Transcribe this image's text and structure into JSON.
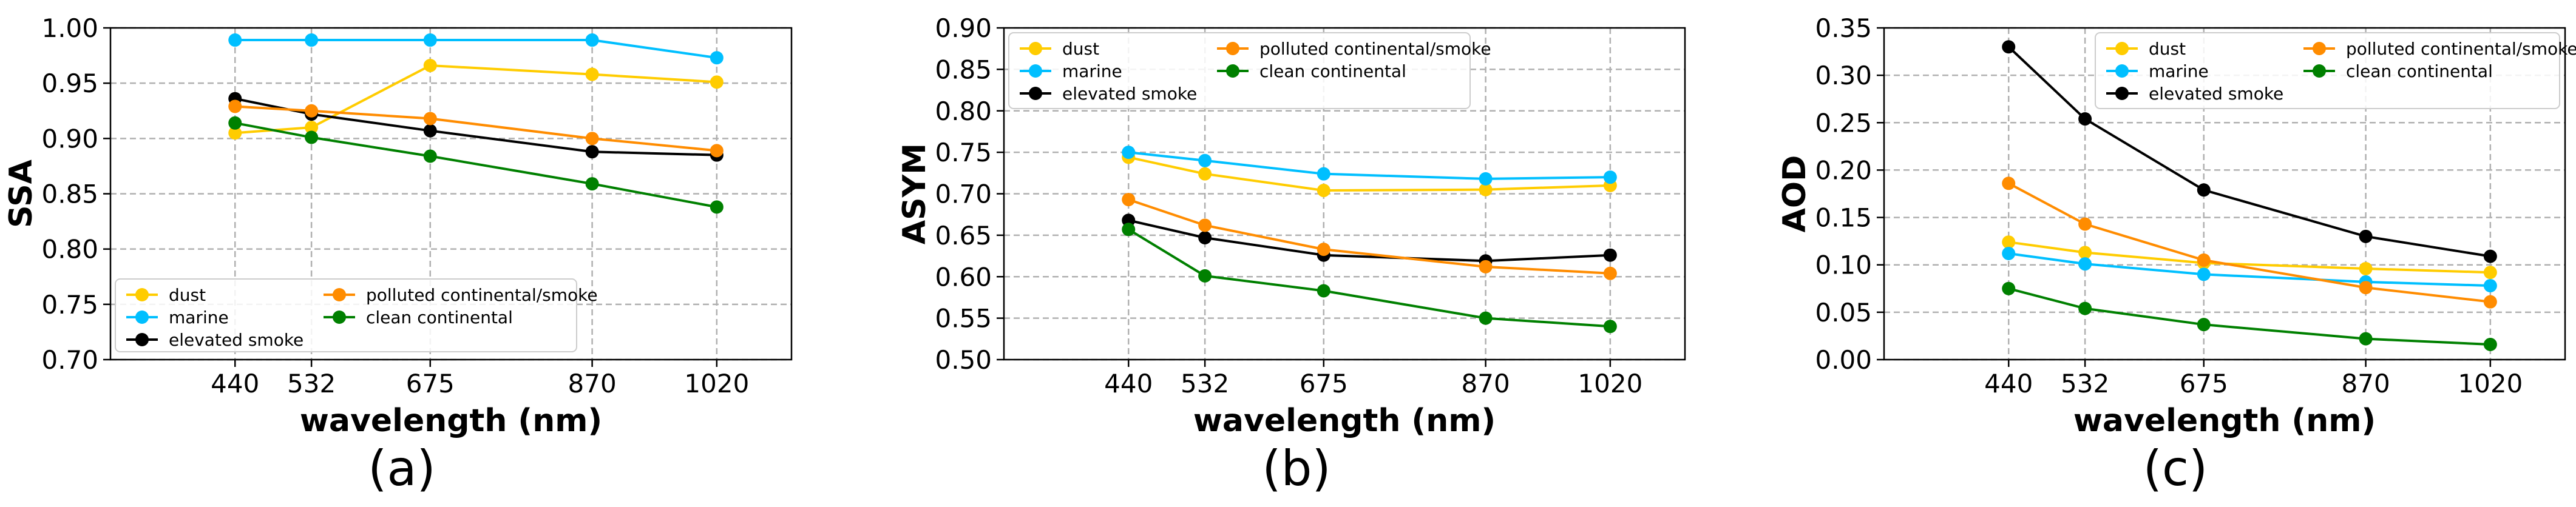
{
  "series_styles": {
    "dust": "#FFCC00",
    "marine": "#00BFFF",
    "elevated smoke": "#000000",
    "polluted continental/smoke": "#FF8C00",
    "clean continental": "#008000"
  },
  "chart_data": [
    {
      "type": "line",
      "panel_label": "(a)",
      "xlabel": "wavelength (nm)",
      "ylabel": "SSA",
      "x": [
        440,
        532,
        675,
        870,
        1020
      ],
      "xlim": [
        290,
        1110
      ],
      "ylim": [
        0.7,
        1.0
      ],
      "yticks": [
        "0.70",
        "0.75",
        "0.80",
        "0.85",
        "0.90",
        "0.95",
        "1.00"
      ],
      "legend_position": "bottom-left",
      "grid": true,
      "series": [
        {
          "name": "dust",
          "values": [
            0.905,
            0.91,
            0.966,
            0.958,
            0.951
          ]
        },
        {
          "name": "marine",
          "values": [
            0.989,
            0.989,
            0.989,
            0.989,
            0.973
          ]
        },
        {
          "name": "elevated smoke",
          "values": [
            0.936,
            0.922,
            0.907,
            0.888,
            0.885
          ]
        },
        {
          "name": "polluted continental/smoke",
          "values": [
            0.929,
            0.925,
            0.918,
            0.9,
            0.889
          ]
        },
        {
          "name": "clean continental",
          "values": [
            0.914,
            0.901,
            0.884,
            0.859,
            0.838
          ]
        }
      ]
    },
    {
      "type": "line",
      "panel_label": "(b)",
      "xlabel": "wavelength (nm)",
      "ylabel": "ASYM",
      "x": [
        440,
        532,
        675,
        870,
        1020
      ],
      "xlim": [
        290,
        1110
      ],
      "ylim": [
        0.5,
        0.9
      ],
      "yticks": [
        "0.50",
        "0.55",
        "0.60",
        "0.65",
        "0.70",
        "0.75",
        "0.80",
        "0.85",
        "0.90"
      ],
      "legend_position": "top-left",
      "grid": true,
      "series": [
        {
          "name": "dust",
          "values": [
            0.744,
            0.724,
            0.704,
            0.705,
            0.71
          ]
        },
        {
          "name": "marine",
          "values": [
            0.75,
            0.74,
            0.724,
            0.718,
            0.72
          ]
        },
        {
          "name": "elevated smoke",
          "values": [
            0.668,
            0.647,
            0.626,
            0.619,
            0.626
          ]
        },
        {
          "name": "polluted continental/smoke",
          "values": [
            0.693,
            0.662,
            0.633,
            0.612,
            0.604
          ]
        },
        {
          "name": "clean continental",
          "values": [
            0.657,
            0.601,
            0.583,
            0.55,
            0.54
          ]
        }
      ]
    },
    {
      "type": "line",
      "panel_label": "(c)",
      "xlabel": "wavelength (nm)",
      "ylabel": "AOD",
      "x": [
        440,
        532,
        675,
        870,
        1020
      ],
      "xlim": [
        290,
        1110
      ],
      "ylim": [
        0.0,
        0.35
      ],
      "yticks": [
        "0.00",
        "0.05",
        "0.10",
        "0.15",
        "0.20",
        "0.25",
        "0.30",
        "0.35"
      ],
      "legend_position": "top-right",
      "grid": true,
      "series": [
        {
          "name": "dust",
          "values": [
            0.124,
            0.113,
            0.102,
            0.096,
            0.092
          ]
        },
        {
          "name": "marine",
          "values": [
            0.112,
            0.101,
            0.09,
            0.082,
            0.078
          ]
        },
        {
          "name": "elevated smoke",
          "values": [
            0.33,
            0.254,
            0.179,
            0.13,
            0.109
          ]
        },
        {
          "name": "polluted continental/smoke",
          "values": [
            0.186,
            0.143,
            0.105,
            0.076,
            0.061
          ]
        },
        {
          "name": "clean continental",
          "values": [
            0.075,
            0.054,
            0.037,
            0.022,
            0.016
          ]
        }
      ]
    }
  ]
}
